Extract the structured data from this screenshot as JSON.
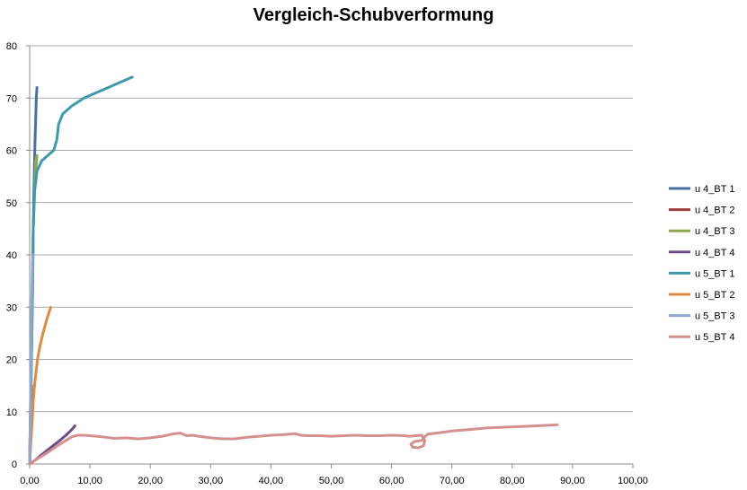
{
  "chart_data": {
    "type": "line",
    "title": "Vergleich-Schubverformung",
    "xlabel": "",
    "ylabel": "",
    "xlim": [
      0,
      100
    ],
    "ylim": [
      0,
      80
    ],
    "x_ticks": [
      0,
      10,
      20,
      30,
      40,
      50,
      60,
      70,
      80,
      90,
      100
    ],
    "x_tick_labels": [
      "0,00",
      "10,00",
      "20,00",
      "30,00",
      "40,00",
      "50,00",
      "60,00",
      "70,00",
      "80,00",
      "90,00",
      "100,00"
    ],
    "y_ticks": [
      0,
      10,
      20,
      30,
      40,
      50,
      60,
      70,
      80
    ],
    "y_tick_labels": [
      "0",
      "10",
      "20",
      "30",
      "40",
      "50",
      "60",
      "70",
      "80"
    ],
    "grid": "horizontal",
    "legend_position": "right",
    "series": [
      {
        "name": "u 4_BT 1",
        "color": "#4A6FA5",
        "x": [
          0,
          0.2,
          0.3,
          0.5,
          0.6,
          0.7,
          0.8,
          0.9,
          1.0,
          1.1,
          1.2
        ],
        "y": [
          0,
          10,
          20,
          35,
          45,
          52,
          58,
          62,
          66,
          70,
          72
        ]
      },
      {
        "name": "u 4_BT 2",
        "color": "#A0413E",
        "x": [
          0,
          0.1,
          0.2,
          0.3
        ],
        "y": [
          0,
          5,
          10,
          15
        ]
      },
      {
        "name": "u 4_BT 3",
        "color": "#8AAA4D",
        "x": [
          0,
          0.2,
          0.4,
          0.5,
          0.6,
          0.8,
          1.0,
          1.2,
          1.0,
          0.6
        ],
        "y": [
          0,
          15,
          27,
          35,
          45,
          52,
          56,
          59,
          58,
          45
        ]
      },
      {
        "name": "u 4_BT 4",
        "color": "#6C4E8C",
        "x": [
          0,
          1,
          2,
          3,
          4,
          5,
          6,
          7,
          7.5
        ],
        "y": [
          0,
          0.8,
          1.8,
          2.7,
          3.6,
          4.5,
          5.5,
          6.6,
          7.3
        ]
      },
      {
        "name": "u 5_BT 1",
        "color": "#3E9AAD",
        "x": [
          0,
          0.2,
          0.4,
          0.6,
          0.8,
          1.2,
          2.0,
          3.0,
          4.0,
          4.5,
          4.8,
          5.5,
          7.0,
          9.0,
          12.0,
          15.0,
          17.0
        ],
        "y": [
          0,
          15,
          30,
          45,
          52,
          56,
          58,
          59,
          60,
          62,
          65,
          67,
          68.5,
          70,
          71.5,
          73,
          74
        ]
      },
      {
        "name": "u 5_BT 2",
        "color": "#E08A3C",
        "x": [
          0,
          0.2,
          0.4,
          0.6,
          0.8,
          1.0,
          1.3,
          1.7,
          2.2,
          2.8,
          3.2,
          3.5
        ],
        "y": [
          0,
          4,
          8,
          12,
          15,
          17,
          20,
          22.5,
          25,
          27.5,
          29,
          30
        ]
      },
      {
        "name": "u 5_BT 3",
        "color": "#8FA8CF",
        "x": [
          0,
          0.1,
          0.2,
          0.3,
          0.4,
          0.5
        ],
        "y": [
          0,
          8,
          18,
          28,
          35,
          40
        ]
      },
      {
        "name": "u 5_BT 4",
        "color": "#D3908E",
        "x": [
          0,
          1,
          2,
          3,
          4,
          5,
          6,
          7,
          8,
          9,
          10,
          11,
          12,
          14,
          16,
          18,
          20,
          22,
          24,
          25,
          26,
          27,
          28,
          30,
          32,
          34,
          36,
          38,
          40,
          42,
          44,
          45,
          46,
          48,
          50,
          52,
          54,
          56,
          58,
          60,
          62,
          63,
          64,
          65,
          65.5,
          65.3,
          64.5,
          63.5,
          63.2,
          63.8,
          65,
          65.5,
          66,
          68,
          70,
          72,
          74,
          76,
          78,
          80,
          82,
          84,
          86,
          87.5
        ],
        "y": [
          0,
          0.8,
          1.5,
          2.2,
          3.0,
          3.8,
          4.5,
          5.2,
          5.5,
          5.5,
          5.4,
          5.3,
          5.2,
          4.9,
          5.0,
          4.8,
          5.0,
          5.3,
          5.8,
          5.9,
          5.4,
          5.5,
          5.3,
          5.0,
          4.8,
          4.8,
          5.1,
          5.3,
          5.5,
          5.6,
          5.8,
          5.5,
          5.4,
          5.4,
          5.3,
          5.4,
          5.5,
          5.4,
          5.4,
          5.5,
          5.4,
          5.3,
          5.4,
          5.5,
          4.5,
          3.5,
          3.1,
          3.2,
          3.8,
          4.3,
          4.5,
          5.2,
          5.7,
          6.0,
          6.3,
          6.5,
          6.7,
          6.9,
          7.0,
          7.1,
          7.2,
          7.3,
          7.4,
          7.5
        ]
      }
    ]
  }
}
